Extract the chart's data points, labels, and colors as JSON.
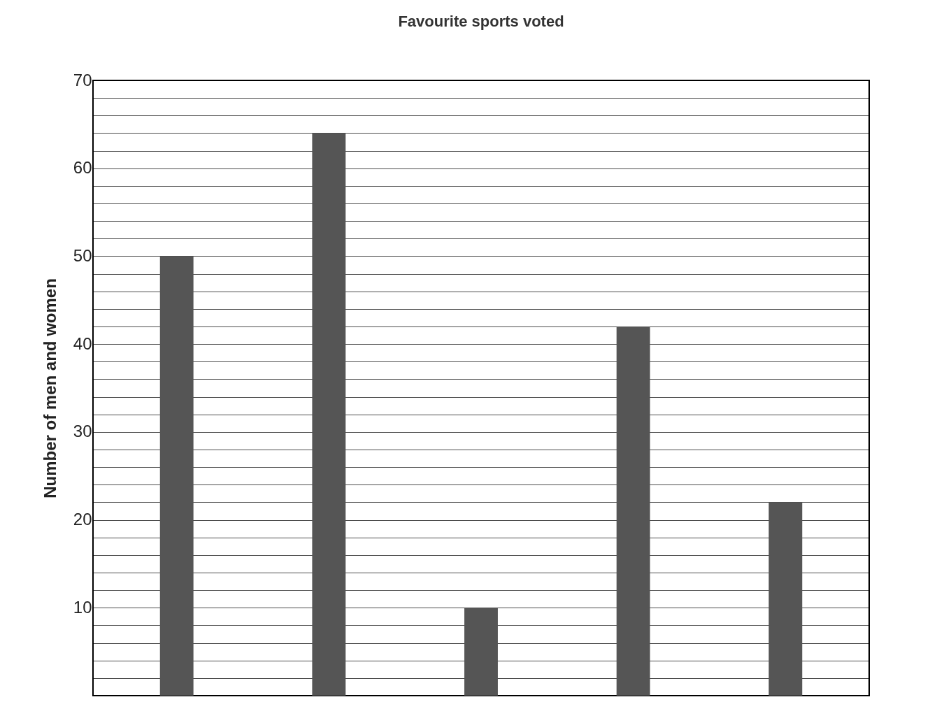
{
  "chart_data": {
    "type": "bar",
    "title": "Favourite sports voted",
    "ylabel": "Number of men and women",
    "categories": [
      null,
      null,
      null,
      null,
      null
    ],
    "values": [
      50,
      64,
      10,
      42,
      22
    ],
    "color": "#555555",
    "ylim": [
      0,
      70
    ],
    "yticks": [
      {
        "value": 2,
        "label": null
      },
      {
        "value": 4,
        "label": null
      },
      {
        "value": 6,
        "label": null
      },
      {
        "value": 8,
        "label": null
      },
      10,
      {
        "value": 12,
        "label": null
      },
      {
        "value": 14,
        "label": null
      },
      {
        "value": 16,
        "label": null
      },
      {
        "value": 18,
        "label": null
      },
      20,
      {
        "value": 22,
        "label": null
      },
      {
        "value": 24,
        "label": null
      },
      {
        "value": 26,
        "label": null
      },
      {
        "value": 28,
        "label": null
      },
      30,
      {
        "value": 32,
        "label": null
      },
      {
        "value": 34,
        "label": null
      },
      {
        "value": 36,
        "label": null
      },
      {
        "value": 38,
        "label": null
      },
      40,
      {
        "value": 42,
        "label": null
      },
      {
        "value": 44,
        "label": null
      },
      {
        "value": 46,
        "label": null
      },
      {
        "value": 48,
        "label": null
      },
      50,
      {
        "value": 52,
        "label": null
      },
      {
        "value": 54,
        "label": null
      },
      {
        "value": 56,
        "label": null
      },
      {
        "value": 58,
        "label": null
      },
      60,
      {
        "value": 62,
        "label": null
      },
      {
        "value": 64,
        "label": null
      },
      {
        "value": 66,
        "label": null
      },
      {
        "value": 68,
        "label": null
      },
      70
    ],
    "grid": true,
    "tick_labels": "y"
  }
}
